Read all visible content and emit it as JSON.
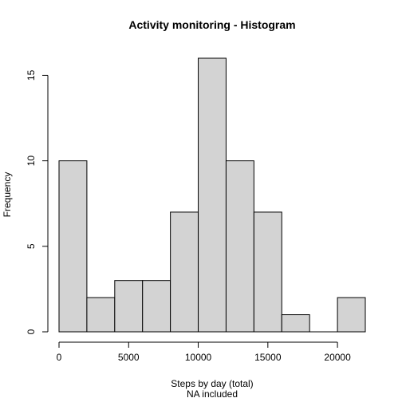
{
  "chart_data": {
    "type": "bar",
    "title": "Activity monitoring - Histogram",
    "xlabel": "Steps by day (total)",
    "subtitle": "NA included",
    "ylabel": "Frequency",
    "bins": [
      {
        "start": 0,
        "end": 2000,
        "count": 10
      },
      {
        "start": 2000,
        "end": 4000,
        "count": 2
      },
      {
        "start": 4000,
        "end": 6000,
        "count": 3
      },
      {
        "start": 6000,
        "end": 8000,
        "count": 3
      },
      {
        "start": 8000,
        "end": 10000,
        "count": 7
      },
      {
        "start": 10000,
        "end": 12000,
        "count": 16
      },
      {
        "start": 12000,
        "end": 14000,
        "count": 10
      },
      {
        "start": 14000,
        "end": 16000,
        "count": 7
      },
      {
        "start": 16000,
        "end": 18000,
        "count": 1
      },
      {
        "start": 18000,
        "end": 20000,
        "count": 0
      },
      {
        "start": 20000,
        "end": 22000,
        "count": 2
      }
    ],
    "xticks": [
      0,
      5000,
      10000,
      15000,
      20000
    ],
    "yticks": [
      0,
      5,
      10,
      15
    ],
    "xlim": [
      0,
      22000
    ],
    "ylim": [
      0,
      16
    ],
    "bar_color": "#d3d3d3",
    "border_color": "#000000"
  }
}
